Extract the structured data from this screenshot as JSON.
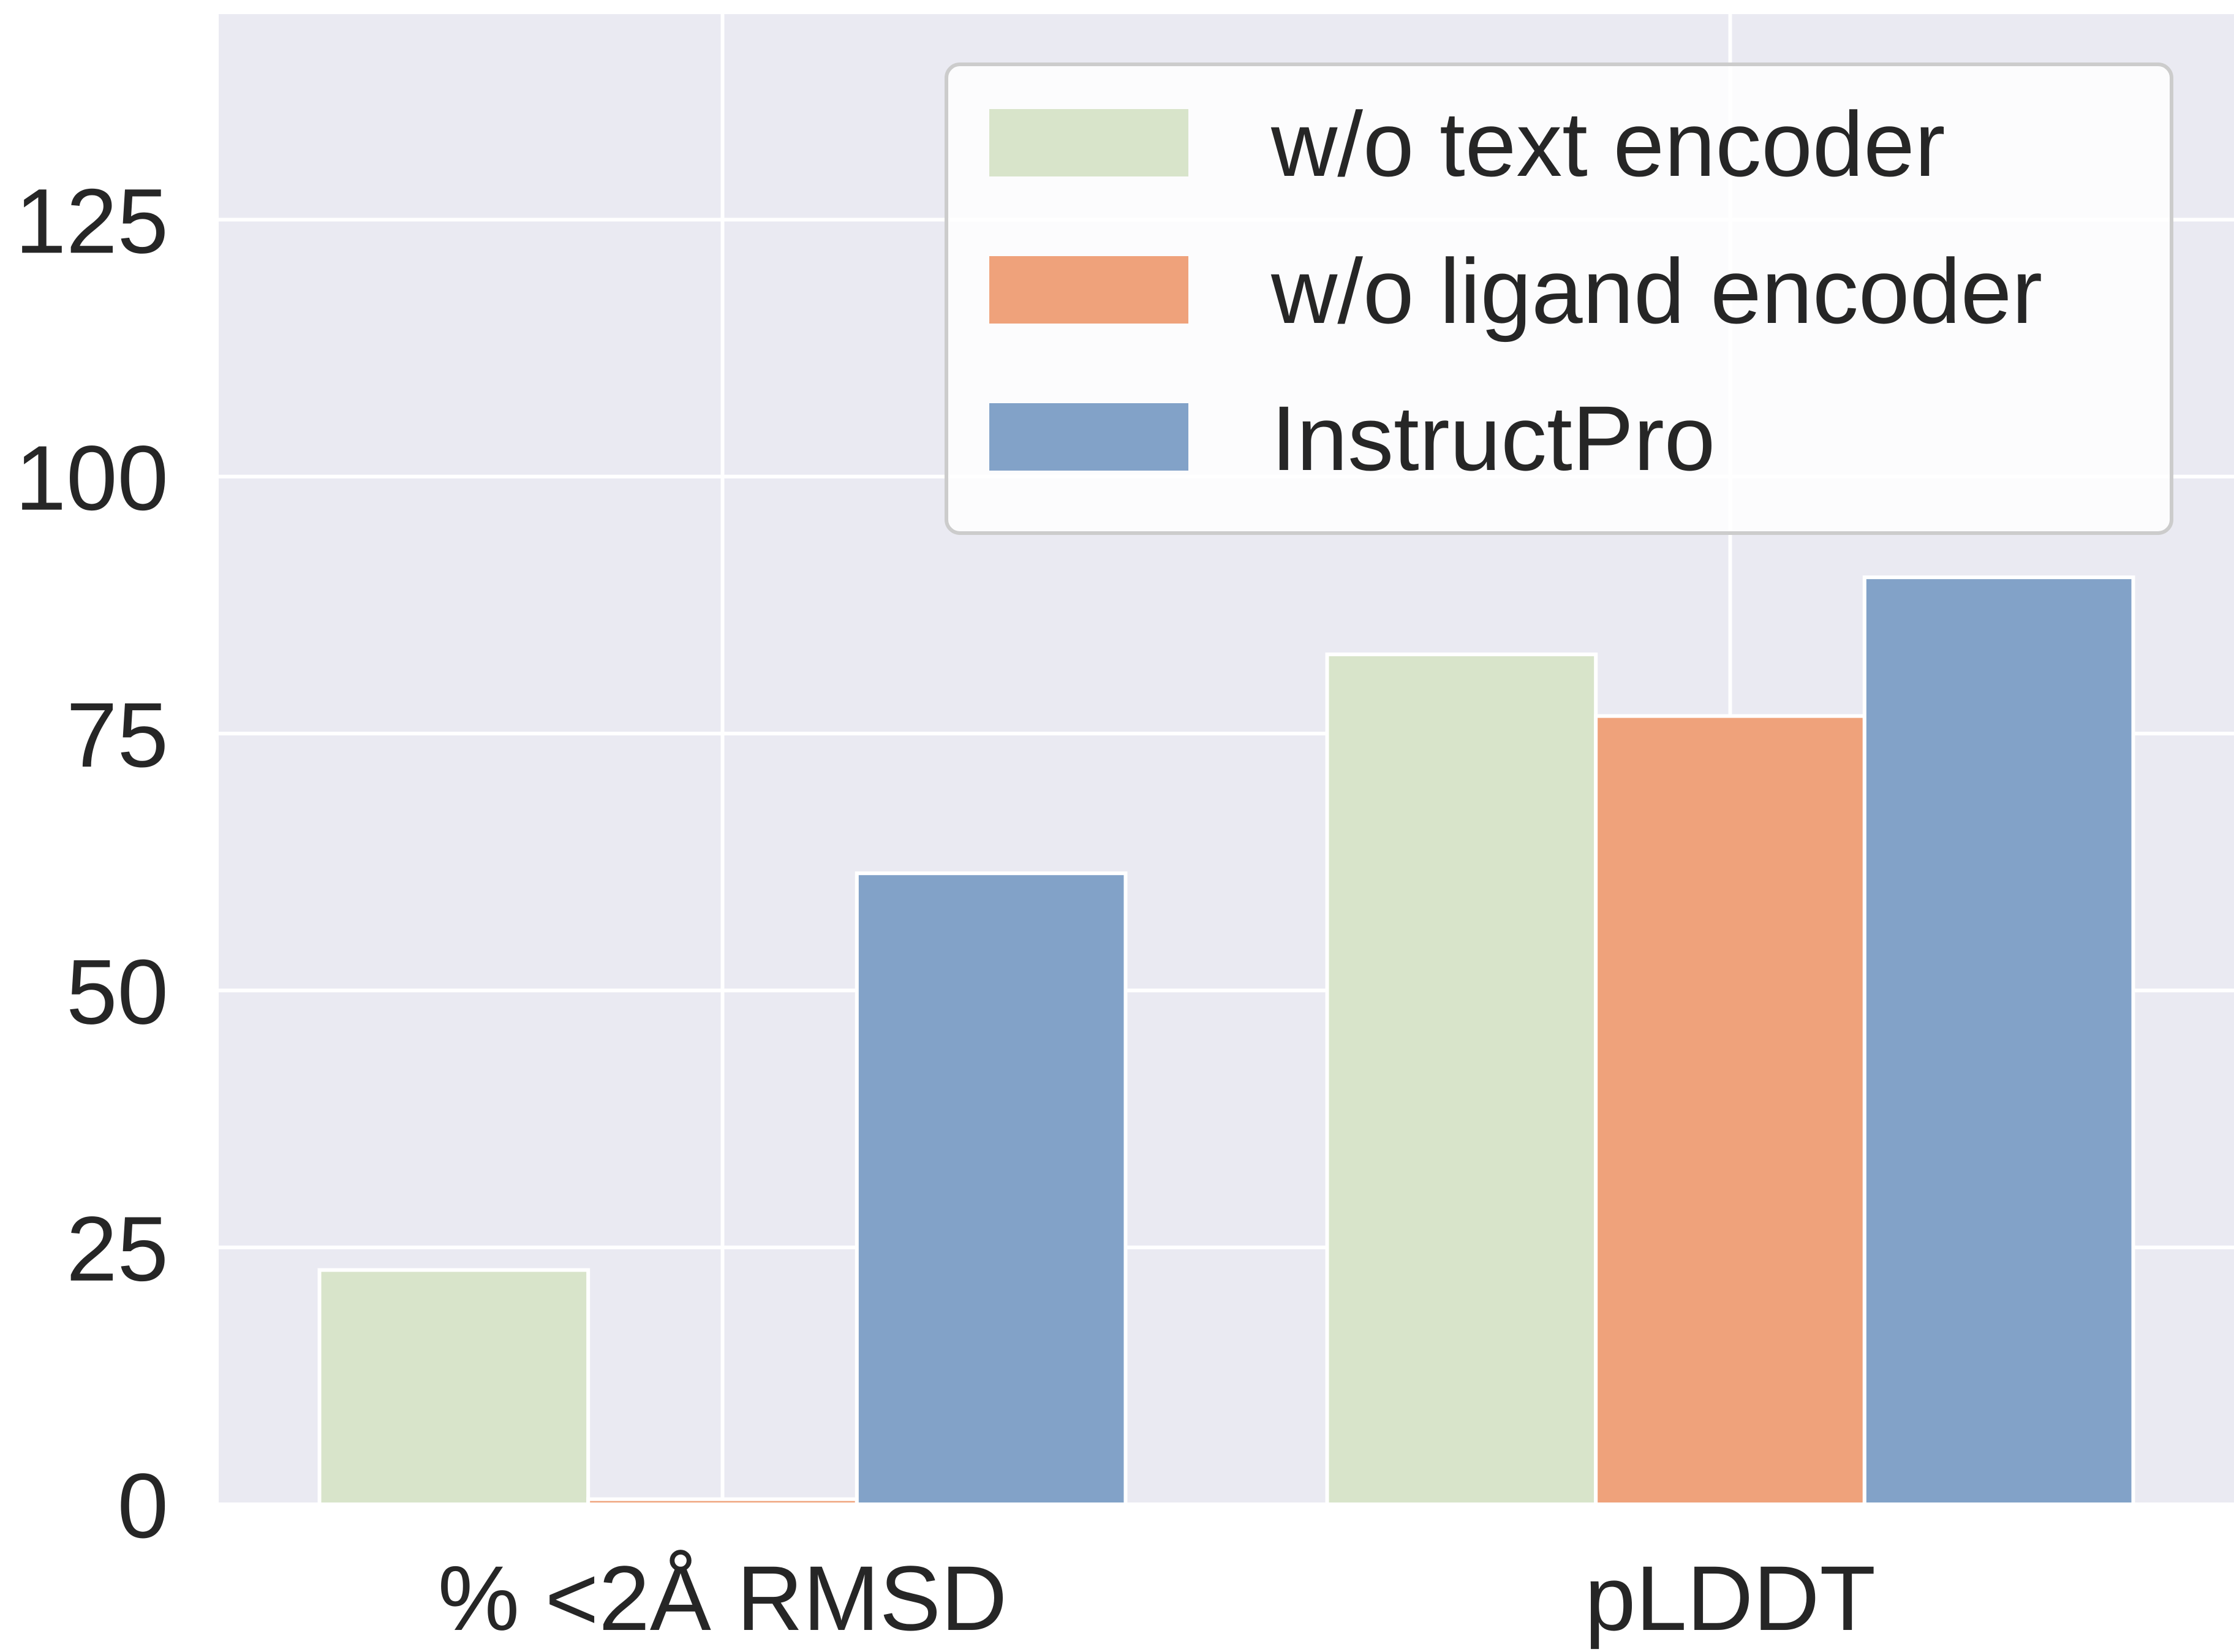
{
  "chart_data": {
    "type": "bar",
    "categories": [
      "% <2Å RMSD",
      "pLDDT"
    ],
    "series": [
      {
        "name": "w/o text encoder",
        "color": "#d8e4ca",
        "values": [
          22.8,
          82.7
        ]
      },
      {
        "name": "w/o ligand encoder",
        "color": "#efa27b",
        "values": [
          0.5,
          76.7
        ]
      },
      {
        "name": "InstructPro",
        "color": "#82a2c8",
        "values": [
          61.4,
          90.2
        ]
      }
    ],
    "ylim": [
      0,
      145
    ],
    "yticks": [
      0,
      25,
      50,
      75,
      100,
      125
    ],
    "grid": true,
    "legend": "top-right",
    "background_color": "#eaeaf2",
    "grid_color": "#ffffff"
  }
}
